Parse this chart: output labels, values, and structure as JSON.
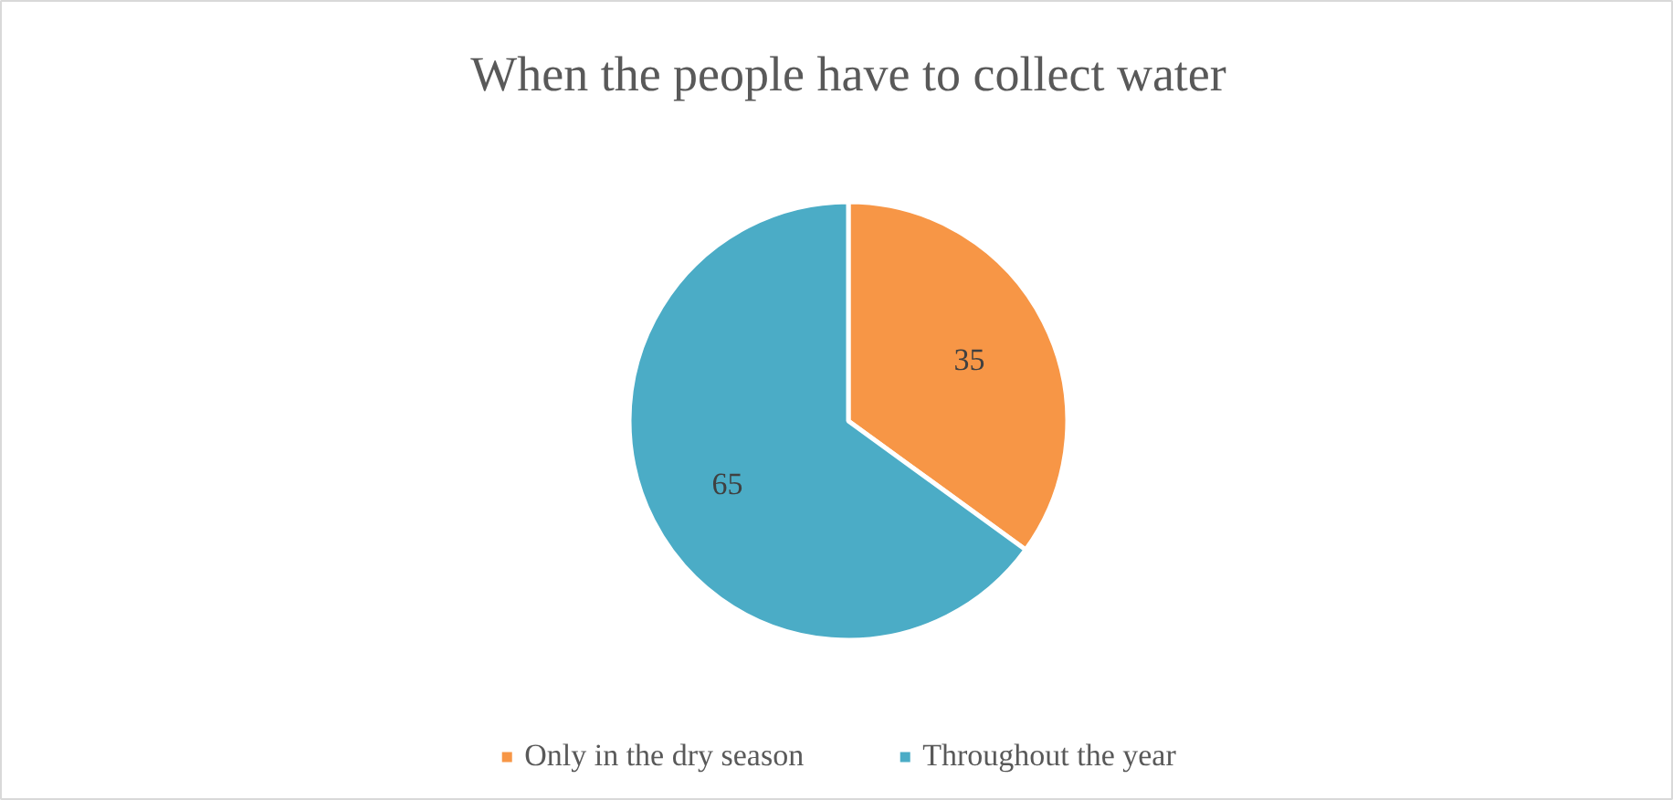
{
  "chart_data": {
    "type": "pie",
    "title": "When the people have to collect water",
    "categories": [
      "Only in the dry season",
      "Throughout the year"
    ],
    "values": [
      35,
      65
    ],
    "colors": [
      "#f79646",
      "#4bacc6"
    ],
    "data_labels": true,
    "legend": "bottom"
  }
}
